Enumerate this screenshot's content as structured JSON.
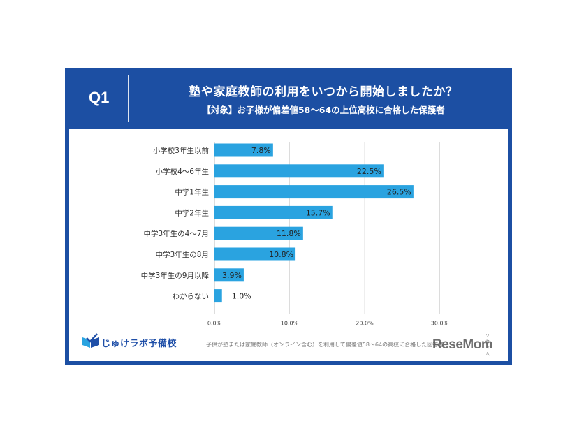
{
  "header": {
    "q_label": "Q1",
    "title": "塾や家庭教師の利用をいつから開始しましたか？",
    "subtitle": "【対象】お子様が偏差値58～64の上位高校に合格した保護者"
  },
  "chart_data": {
    "type": "bar",
    "orientation": "horizontal",
    "title": "塾や家庭教師の利用をいつから開始しましたか？",
    "categories": [
      "小学校3年生以前",
      "小学校4～6年生",
      "中学1年生",
      "中学2年生",
      "中学3年生の4～7月",
      "中学3年生の8月",
      "中学3年生の9月以降",
      "わからない"
    ],
    "values": [
      7.8,
      22.5,
      26.5,
      15.7,
      11.8,
      10.8,
      3.9,
      1.0
    ],
    "value_labels": [
      "7.8%",
      "22.5%",
      "26.5%",
      "15.7%",
      "11.8%",
      "10.8%",
      "3.9%",
      "1.0%"
    ],
    "x_ticks": [
      0,
      10,
      20,
      30
    ],
    "x_tick_labels": [
      "0.0%",
      "10.0%",
      "20.0%",
      "30.0%"
    ],
    "xlim": [
      0,
      30
    ],
    "grid": true,
    "bar_color": "#2aa3e0"
  },
  "colors": {
    "header_bg": "#1c4fa3",
    "bar": "#2aa3e0",
    "outside_label": "#2aa3e0"
  },
  "footer": {
    "logo_text": "じゅけラボ予備校",
    "logo_icon": "book-check-icon",
    "note": "子供が塾または家庭教師（オンライン含む）を利用して偏差値58～64の高校に合格した回答者",
    "watermark": "ReseMom",
    "watermark_sub": "リセマム"
  }
}
